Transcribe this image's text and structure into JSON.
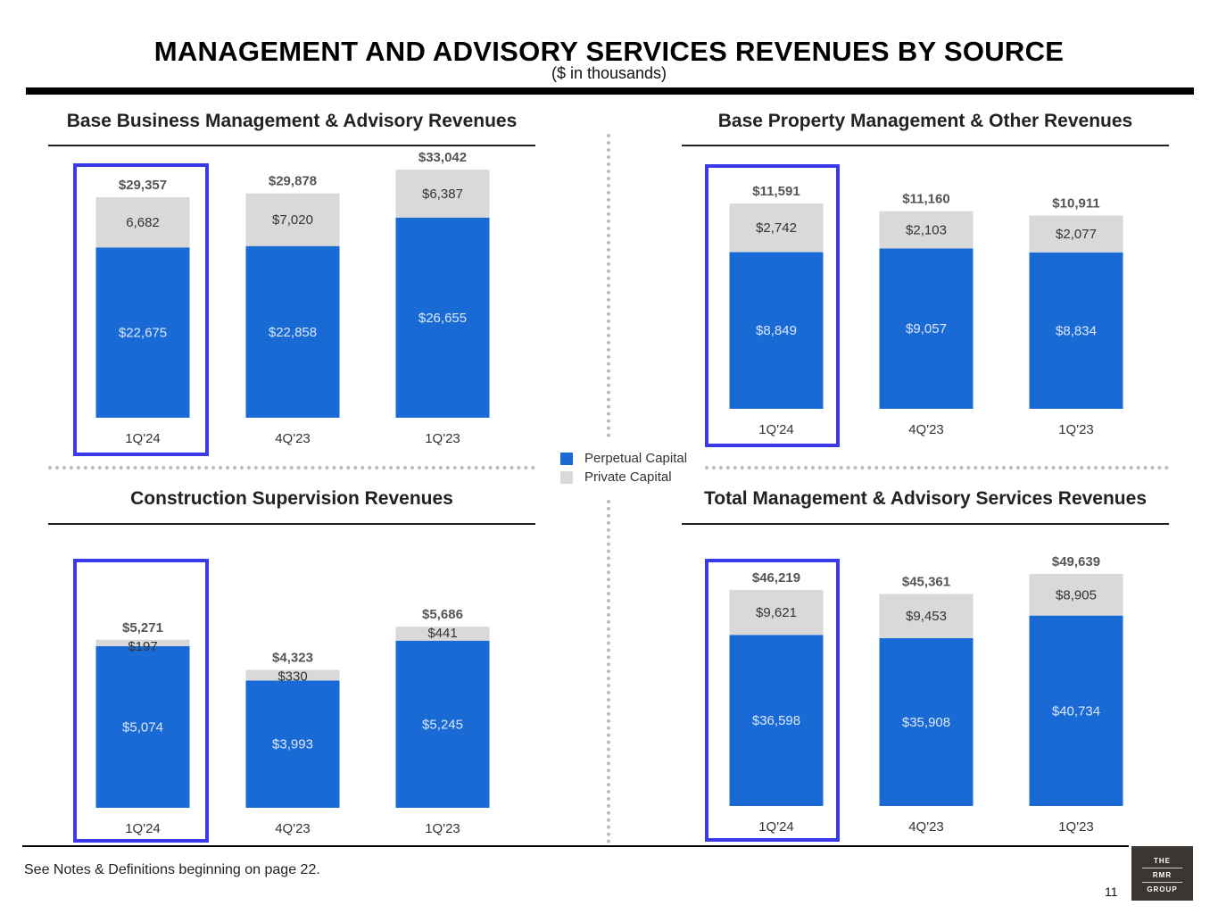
{
  "header": {
    "title": "MANAGEMENT AND ADVISORY SERVICES REVENUES BY SOURCE",
    "subtitle": "($ in thousands)"
  },
  "legend": [
    {
      "label": "Perpetual Capital",
      "color": "#1a6ad6"
    },
    {
      "label": "Private Capital",
      "color": "#d9d9d9"
    }
  ],
  "colors": {
    "perpetual": "#1a6ad6",
    "private": "#d9d9d9",
    "highlight": "#3a3ae8"
  },
  "chart_data": [
    {
      "type": "bar",
      "stacked": true,
      "title": "Base Business Management & Advisory Revenues",
      "categories": [
        "1Q'24",
        "4Q'23",
        "1Q'23"
      ],
      "series": [
        {
          "name": "Perpetual Capital",
          "values": [
            22675,
            22858,
            26655
          ],
          "labels": [
            "$22,675",
            "$22,858",
            "$26,655"
          ]
        },
        {
          "name": "Private Capital",
          "values": [
            6682,
            7020,
            6387
          ],
          "labels": [
            "6,682",
            "$7,020",
            "$6,387"
          ]
        }
      ],
      "totals": [
        "$29,357",
        "$29,878",
        "$33,042"
      ],
      "highlighted_category": "1Q'24"
    },
    {
      "type": "bar",
      "stacked": true,
      "title": "Base Property Management & Other Revenues",
      "categories": [
        "1Q'24",
        "4Q'23",
        "1Q'23"
      ],
      "series": [
        {
          "name": "Perpetual Capital",
          "values": [
            8849,
            9057,
            8834
          ],
          "labels": [
            "$8,849",
            "$9,057",
            "$8,834"
          ]
        },
        {
          "name": "Private Capital",
          "values": [
            2742,
            2103,
            2077
          ],
          "labels": [
            "$2,742",
            "$2,103",
            "$2,077"
          ]
        }
      ],
      "totals": [
        "$11,591",
        "$11,160",
        "$10,911"
      ],
      "highlighted_category": "1Q'24"
    },
    {
      "type": "bar",
      "stacked": true,
      "title": "Construction Supervision Revenues",
      "categories": [
        "1Q'24",
        "4Q'23",
        "1Q'23"
      ],
      "series": [
        {
          "name": "Perpetual Capital",
          "values": [
            5074,
            3993,
            5245
          ],
          "labels": [
            "$5,074",
            "$3,993",
            "$5,245"
          ]
        },
        {
          "name": "Private Capital",
          "values": [
            197,
            330,
            441
          ],
          "labels": [
            "$197",
            "$330",
            "$441"
          ]
        }
      ],
      "totals": [
        "$5,271",
        "$4,323",
        "$5,686"
      ],
      "highlighted_category": "1Q'24"
    },
    {
      "type": "bar",
      "stacked": true,
      "title": "Total Management & Advisory Services Revenues",
      "categories": [
        "1Q'24",
        "4Q'23",
        "1Q'23"
      ],
      "series": [
        {
          "name": "Perpetual Capital",
          "values": [
            36598,
            35908,
            40734
          ],
          "labels": [
            "$36,598",
            "$35,908",
            "$40,734"
          ]
        },
        {
          "name": "Private Capital",
          "values": [
            9621,
            9453,
            8905
          ],
          "labels": [
            "$9,621",
            "$9,453",
            "$8,905"
          ]
        }
      ],
      "totals": [
        "$46,219",
        "$45,361",
        "$49,639"
      ],
      "highlighted_category": "1Q'24"
    }
  ],
  "footer": {
    "note": "See Notes & Definitions beginning on page 22.",
    "page_number": "11",
    "logo": [
      "THE",
      "RMR",
      "GROUP"
    ]
  }
}
